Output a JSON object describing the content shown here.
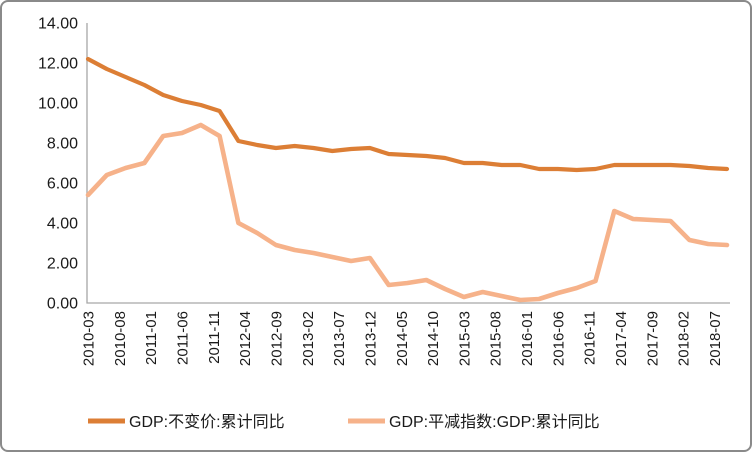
{
  "chart_data": {
    "type": "line",
    "title": "",
    "xlabel": "",
    "ylabel": "",
    "ylim": [
      0,
      14
    ],
    "y_ticks": [
      0,
      2,
      4,
      6,
      8,
      10,
      12,
      14
    ],
    "y_tick_labels": [
      "0.00",
      "2.00",
      "4.00",
      "6.00",
      "8.00",
      "10.00",
      "12.00",
      "14.00"
    ],
    "grid": false,
    "legend_position": "bottom",
    "axis_color": "#a6a6a6",
    "text_color": "#1a1a1a",
    "x": [
      "2010-03",
      "2010-06",
      "2010-09",
      "2010-12",
      "2011-03",
      "2011-06",
      "2011-09",
      "2011-12",
      "2012-03",
      "2012-06",
      "2012-09",
      "2012-12",
      "2013-03",
      "2013-06",
      "2013-09",
      "2013-12",
      "2014-03",
      "2014-06",
      "2014-09",
      "2014-12",
      "2015-03",
      "2015-06",
      "2015-09",
      "2015-12",
      "2016-03",
      "2016-06",
      "2016-09",
      "2016-12",
      "2017-03",
      "2017-06",
      "2017-09",
      "2017-12",
      "2018-03",
      "2018-06",
      "2018-09"
    ],
    "x_tick_labels": [
      "2010-03",
      "2010-08",
      "2011-01",
      "2011-06",
      "2011-11",
      "2012-04",
      "2012-09",
      "2013-02",
      "2013-07",
      "2013-12",
      "2014-05",
      "2014-10",
      "2015-03",
      "2015-08",
      "2016-01",
      "2016-06",
      "2016-11",
      "2017-04",
      "2017-09",
      "2018-02",
      "2018-07"
    ],
    "series": [
      {
        "name": "GDP:不变价:累计同比",
        "color": "#dc7e35",
        "line_width": 4.2,
        "values": [
          12.2,
          11.7,
          11.3,
          10.9,
          10.4,
          10.1,
          9.9,
          9.6,
          8.1,
          7.9,
          7.75,
          7.85,
          7.75,
          7.6,
          7.7,
          7.75,
          7.45,
          7.4,
          7.35,
          7.25,
          7.0,
          7.0,
          6.9,
          6.9,
          6.7,
          6.7,
          6.65,
          6.7,
          6.9,
          6.9,
          6.9,
          6.9,
          6.85,
          6.75,
          6.7
        ]
      },
      {
        "name": "GDP:平减指数:GDP:累计同比",
        "color": "#f6b28a",
        "line_width": 4.6,
        "values": [
          5.4,
          6.4,
          6.75,
          7.0,
          8.35,
          8.5,
          8.9,
          8.35,
          4.0,
          3.5,
          2.9,
          2.65,
          2.5,
          2.3,
          2.1,
          2.25,
          0.9,
          1.0,
          1.15,
          0.7,
          0.3,
          0.55,
          0.35,
          0.15,
          0.2,
          0.5,
          0.75,
          1.1,
          4.6,
          4.2,
          4.15,
          4.1,
          3.15,
          2.95,
          2.9
        ]
      }
    ]
  }
}
